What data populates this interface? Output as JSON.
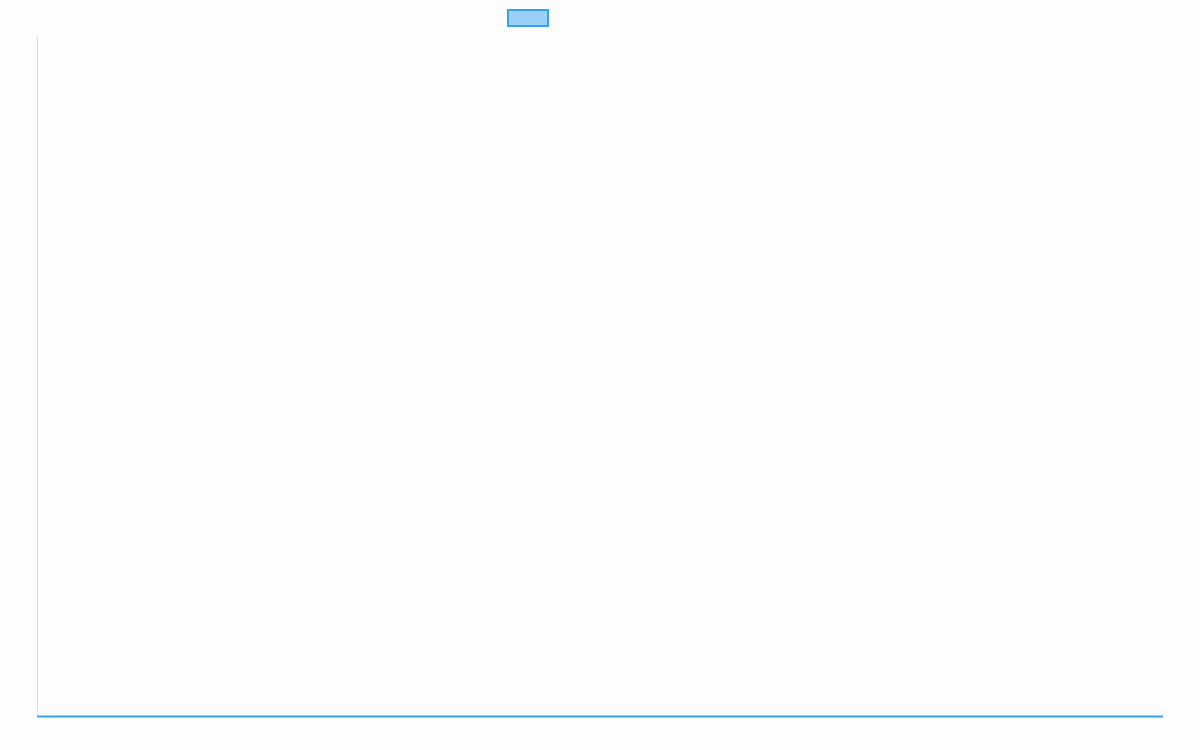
{
  "chart_data": {
    "type": "line",
    "title": "",
    "xlabel": "",
    "ylabel": "",
    "categories": [],
    "series": [
      {
        "name": "",
        "values": [],
        "border_color": "#36a2eb",
        "fill_color": "#9ad0f5"
      }
    ],
    "legend": "top",
    "grid": false
  }
}
